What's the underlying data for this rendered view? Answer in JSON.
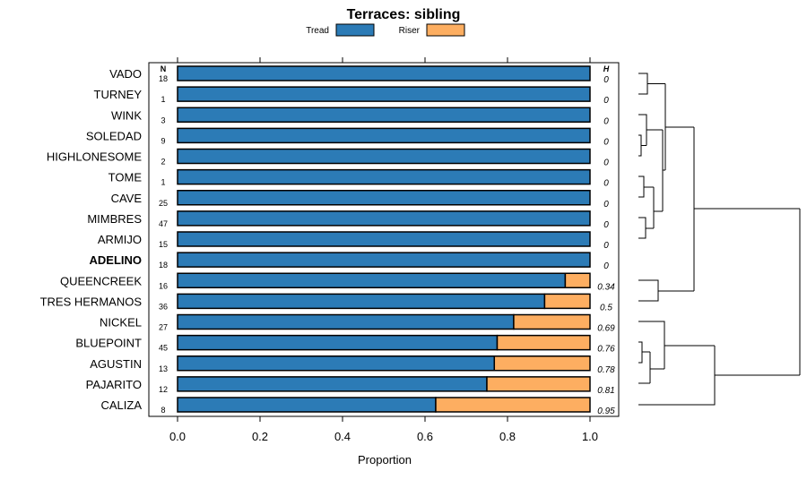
{
  "chart_data": {
    "type": "bar",
    "orientation": "horizontal",
    "stacked": true,
    "title": "Terraces: sibling",
    "xlabel": "Proportion",
    "ylabel": "",
    "xlim": [
      0,
      1
    ],
    "xticks": [
      "0.0",
      "0.2",
      "0.4",
      "0.6",
      "0.8",
      "1.0"
    ],
    "legend": {
      "placement": "top",
      "entries": [
        {
          "name": "Tread",
          "color": "#2C7BB6"
        },
        {
          "name": "Riser",
          "color": "#FDAE61"
        }
      ]
    },
    "n_header": "N",
    "h_header": "H",
    "highlighted_category": "ADELINO",
    "categories": [
      "VADO",
      "TURNEY",
      "WINK",
      "SOLEDAD",
      "HIGHLONESOME",
      "TOME",
      "CAVE",
      "MIMBRES",
      "ARMIJO",
      "ADELINO",
      "QUEENCREEK",
      "TRES HERMANOS",
      "NICKEL",
      "BLUEPOINT",
      "AGUSTIN",
      "PAJARITO",
      "CALIZA"
    ],
    "n": [
      "18",
      "1",
      "3",
      "9",
      "2",
      "1",
      "25",
      "47",
      "15",
      "18",
      "16",
      "36",
      "27",
      "45",
      "13",
      "12",
      "8"
    ],
    "h": [
      "0",
      "0",
      "0",
      "0",
      "0",
      "0",
      "0",
      "0",
      "0",
      "0",
      "0.34",
      "0.5",
      "0.69",
      "0.76",
      "0.78",
      "0.81",
      "0.95"
    ],
    "series": [
      {
        "name": "Tread",
        "values": [
          1,
          1,
          1,
          1,
          1,
          1,
          1,
          1,
          1,
          1,
          0.94,
          0.89,
          0.815,
          0.775,
          0.768,
          0.75,
          0.626
        ]
      },
      {
        "name": "Riser",
        "values": [
          0,
          0,
          0,
          0,
          0,
          0,
          0,
          0,
          0,
          0,
          0.06,
          0.11,
          0.185,
          0.225,
          0.232,
          0.25,
          0.374
        ]
      }
    ]
  }
}
